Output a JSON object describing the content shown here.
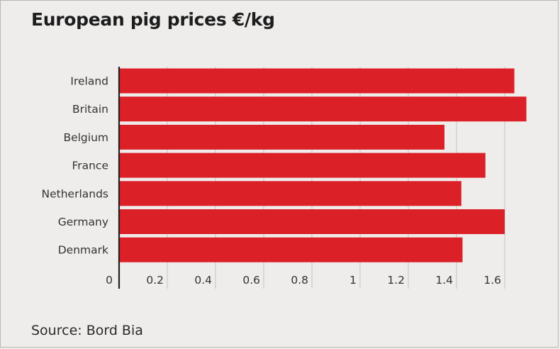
{
  "title": "European pig prices €/kg",
  "source": "Source: Bord Bia",
  "colors": {
    "bar": "#dc2027",
    "grid": "#c4c2c1",
    "axis": "#222222",
    "background": "#efedec"
  },
  "chart_data": {
    "type": "bar",
    "orientation": "horizontal",
    "title": "European pig prices €/kg",
    "categories": [
      "Ireland",
      "Britain",
      "Belgium",
      "France",
      "Netherlands",
      "Germany",
      "Denmark"
    ],
    "values": [
      1.64,
      1.69,
      1.35,
      1.52,
      1.42,
      1.6,
      1.425
    ],
    "xlim": [
      0,
      1.7
    ],
    "xticks": [
      0,
      0.2,
      0.4,
      0.6,
      0.8,
      1,
      1.2,
      1.4,
      1.6
    ],
    "xtick_labels": [
      "0",
      "0.2",
      "0.4",
      "0.6",
      "0.8",
      "1",
      "1.2",
      "1.4",
      "1.6"
    ],
    "xlabel": "",
    "ylabel": "",
    "grid": "vertical",
    "legend": "none"
  }
}
